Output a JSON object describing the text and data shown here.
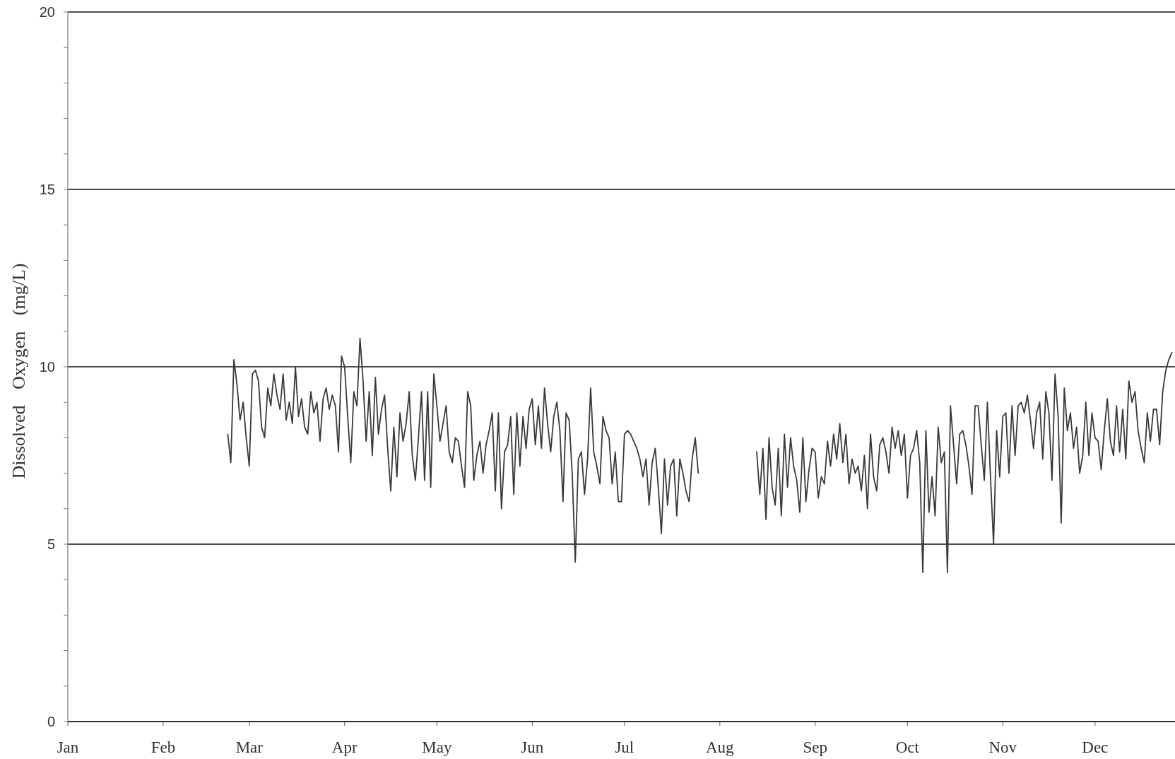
{
  "chart_data": {
    "type": "line",
    "ylabel": "Dissolved Oxygen (mg/L)",
    "x": [
      "--02-22",
      "--02-23",
      "--02-24",
      "--02-25",
      "--02-26",
      "--02-27",
      "--02-28",
      "--03-01",
      "--03-02",
      "--03-03",
      "--03-04",
      "--03-05",
      "--03-06",
      "--03-07",
      "--03-08",
      "--03-09",
      "--03-10",
      "--03-11",
      "--03-12",
      "--03-13",
      "--03-14",
      "--03-15",
      "--03-16",
      "--03-17",
      "--03-18",
      "--03-19",
      "--03-20",
      "--03-21",
      "--03-22",
      "--03-23",
      "--03-24",
      "--03-25",
      "--03-26",
      "--03-27",
      "--03-28",
      "--03-29",
      "--03-30",
      "--03-31",
      "--04-01",
      "--04-02",
      "--04-03",
      "--04-04",
      "--04-05",
      "--04-06",
      "--04-07",
      "--04-08",
      "--04-09",
      "--04-10",
      "--04-11",
      "--04-12",
      "--04-13",
      "--04-14",
      "--04-15",
      "--04-16",
      "--04-17",
      "--04-18",
      "--04-19",
      "--04-20",
      "--04-21",
      "--04-22",
      "--04-23",
      "--04-24",
      "--04-25",
      "--04-26",
      "--04-27",
      "--04-28",
      "--04-29",
      "--04-30",
      "--05-01",
      "--05-02",
      "--05-03",
      "--05-04",
      "--05-05",
      "--05-06",
      "--05-07",
      "--05-08",
      "--05-09",
      "--05-10",
      "--05-11",
      "--05-12",
      "--05-13",
      "--05-14",
      "--05-15",
      "--05-16",
      "--05-17",
      "--05-18",
      "--05-19",
      "--05-20",
      "--05-21",
      "--05-22",
      "--05-23",
      "--05-24",
      "--05-25",
      "--05-26",
      "--05-27",
      "--05-28",
      "--05-29",
      "--05-30",
      "--05-31",
      "--06-01",
      "--06-02",
      "--06-03",
      "--06-04",
      "--06-05",
      "--06-06",
      "--06-07",
      "--06-08",
      "--06-09",
      "--06-10",
      "--06-11",
      "--06-12",
      "--06-13",
      "--06-14",
      "--06-15",
      "--06-16",
      "--06-17",
      "--06-18",
      "--06-19",
      "--06-20",
      "--06-21",
      "--06-22",
      "--06-23",
      "--06-24",
      "--06-25",
      "--06-26",
      "--06-27",
      "--06-28",
      "--06-29",
      "--06-30",
      "--07-01",
      "--07-02",
      "--07-03",
      "--07-04",
      "--07-05",
      "--07-06",
      "--07-07",
      "--07-08",
      "--07-09",
      "--07-10",
      "--07-11",
      "--07-12",
      "--07-13",
      "--07-14",
      "--07-15",
      "--07-16",
      "--07-17",
      "--07-18",
      "--07-19",
      "--07-20",
      "--07-21",
      "--07-22",
      "--07-23",
      "--07-24",
      "--07-25",
      "--08-04",
      "--08-13",
      "--08-14",
      "--08-15",
      "--08-16",
      "--08-17",
      "--08-18",
      "--08-19",
      "--08-20",
      "--08-21",
      "--08-22",
      "--08-23",
      "--08-24",
      "--08-25",
      "--08-26",
      "--08-27",
      "--08-28",
      "--08-29",
      "--08-30",
      "--08-31",
      "--09-01",
      "--09-02",
      "--09-03",
      "--09-04",
      "--09-05",
      "--09-06",
      "--09-07",
      "--09-08",
      "--09-09",
      "--09-10",
      "--09-11",
      "--09-12",
      "--09-13",
      "--09-14",
      "--09-15",
      "--09-16",
      "--09-17",
      "--09-18",
      "--09-19",
      "--09-20",
      "--09-21",
      "--09-22",
      "--09-23",
      "--09-24",
      "--09-25",
      "--09-26",
      "--09-27",
      "--09-28",
      "--09-29",
      "--09-30",
      "--10-01",
      "--10-02",
      "--10-03",
      "--10-04",
      "--10-05",
      "--10-06",
      "--10-07",
      "--10-08",
      "--10-09",
      "--10-10",
      "--10-11",
      "--10-12",
      "--10-13",
      "--10-14",
      "--10-15",
      "--10-16",
      "--10-17",
      "--10-18",
      "--10-19",
      "--10-20",
      "--10-21",
      "--10-22",
      "--10-23",
      "--10-24",
      "--10-25",
      "--10-26",
      "--10-27",
      "--10-28",
      "--10-29",
      "--10-30",
      "--10-31",
      "--11-01",
      "--11-02",
      "--11-03",
      "--11-04",
      "--11-05",
      "--11-06",
      "--11-07",
      "--11-08",
      "--11-09",
      "--11-10",
      "--11-11",
      "--11-12",
      "--11-13",
      "--11-14",
      "--11-15",
      "--11-16",
      "--11-17",
      "--11-18",
      "--11-19",
      "--11-20",
      "--11-21",
      "--11-22",
      "--11-23",
      "--11-24",
      "--11-25",
      "--11-26",
      "--11-27",
      "--11-28",
      "--11-29",
      "--11-30",
      "--12-01",
      "--12-02",
      "--12-03",
      "--12-04",
      "--12-05",
      "--12-06",
      "--12-07",
      "--12-08",
      "--12-09",
      "--12-10",
      "--12-11",
      "--12-12",
      "--12-13",
      "--12-14",
      "--12-15",
      "--12-16",
      "--12-17",
      "--12-18",
      "--12-19",
      "--12-20",
      "--12-21",
      "--12-22",
      "--12-23",
      "--12-24",
      "--12-25",
      "--12-26"
    ],
    "values": [
      8.1,
      7.3,
      10.2,
      9.5,
      8.5,
      9.0,
      8.0,
      7.2,
      9.8,
      9.9,
      9.6,
      8.3,
      8.0,
      9.4,
      8.9,
      9.8,
      9.2,
      8.8,
      9.8,
      8.5,
      9.0,
      8.4,
      10.0,
      8.6,
      9.1,
      8.3,
      8.1,
      9.3,
      8.7,
      9.0,
      7.9,
      9.1,
      9.4,
      8.8,
      9.2,
      8.9,
      7.6,
      10.3,
      10.0,
      8.6,
      7.3,
      9.3,
      8.9,
      10.8,
      9.6,
      7.9,
      9.3,
      7.5,
      9.7,
      8.1,
      8.8,
      9.2,
      7.7,
      6.5,
      8.3,
      6.9,
      8.7,
      7.9,
      8.4,
      9.3,
      7.5,
      6.8,
      8.0,
      9.3,
      6.8,
      9.3,
      6.6,
      9.8,
      8.9,
      7.9,
      8.4,
      8.9,
      7.6,
      7.3,
      8.0,
      7.9,
      7.2,
      6.6,
      9.3,
      8.9,
      6.8,
      7.5,
      7.9,
      7.0,
      7.8,
      8.2,
      8.7,
      6.5,
      8.7,
      6.0,
      7.6,
      7.8,
      8.6,
      6.4,
      8.7,
      7.2,
      8.6,
      7.7,
      8.8,
      9.1,
      7.8,
      8.9,
      7.7,
      9.4,
      8.4,
      7.6,
      8.6,
      9.0,
      8.2,
      6.2,
      8.7,
      8.5,
      7.0,
      4.5,
      7.4,
      7.6,
      6.4,
      7.4,
      9.4,
      7.6,
      7.2,
      6.7,
      8.6,
      8.2,
      8.0,
      6.7,
      7.6,
      6.2,
      6.2,
      8.1,
      8.2,
      8.1,
      7.9,
      7.7,
      7.4,
      6.9,
      7.4,
      6.1,
      7.3,
      7.7,
      6.6,
      5.3,
      7.4,
      6.1,
      7.2,
      7.4,
      5.8,
      7.4,
      7.0,
      6.5,
      6.2,
      7.4,
      8.0,
      7.0,
      null,
      7.6,
      6.4,
      7.7,
      5.7,
      8.0,
      6.6,
      6.1,
      7.7,
      5.8,
      8.1,
      6.6,
      8.0,
      7.2,
      6.8,
      5.9,
      8.0,
      6.2,
      7.1,
      7.7,
      7.6,
      6.3,
      6.9,
      6.7,
      7.9,
      7.2,
      8.1,
      7.4,
      8.4,
      7.3,
      8.1,
      6.7,
      7.4,
      7.0,
      7.2,
      6.5,
      7.5,
      6.0,
      8.1,
      6.9,
      6.5,
      7.8,
      8.0,
      7.6,
      7.0,
      8.3,
      7.7,
      8.2,
      7.5,
      8.1,
      6.3,
      7.5,
      7.7,
      8.2,
      7.3,
      4.2,
      8.2,
      5.9,
      6.9,
      5.8,
      8.3,
      7.3,
      7.6,
      4.2,
      8.9,
      7.8,
      6.7,
      8.1,
      8.2,
      7.8,
      7.2,
      6.4,
      8.9,
      8.9,
      7.8,
      6.8,
      9.0,
      6.9,
      5.0,
      8.2,
      6.9,
      8.6,
      8.7,
      7.0,
      8.9,
      7.5,
      8.9,
      9.0,
      8.7,
      9.2,
      8.5,
      7.7,
      8.7,
      9.0,
      7.4,
      9.3,
      8.7,
      6.8,
      9.8,
      8.6,
      5.6,
      9.4,
      8.2,
      8.7,
      7.7,
      8.3,
      7.0,
      7.5,
      9.0,
      7.5,
      8.7,
      8.0,
      7.9,
      7.1,
      8.2,
      9.1,
      7.9,
      7.5,
      8.9,
      7.6,
      8.8,
      7.4,
      9.6,
      9.0,
      9.3,
      8.2,
      7.7,
      7.3,
      8.7,
      7.9,
      8.8,
      8.8,
      7.8,
      9.3,
      9.9,
      10.2,
      10.4
    ],
    "color": "#3a3a3a",
    "xlim": [
      "--01-01",
      "--12-27"
    ],
    "xticks": [
      {
        "value": "--01-01",
        "label": "Jan"
      },
      {
        "value": "--02-01",
        "label": "Feb"
      },
      {
        "value": "--03-01",
        "label": "Mar"
      },
      {
        "value": "--04-01",
        "label": "Apr"
      },
      {
        "value": "--05-01",
        "label": "May"
      },
      {
        "value": "--06-01",
        "label": "Jun"
      },
      {
        "value": "--07-01",
        "label": "Jul"
      },
      {
        "value": "--08-01",
        "label": "Aug"
      },
      {
        "value": "--09-01",
        "label": "Sep"
      },
      {
        "value": "--10-01",
        "label": "Oct"
      },
      {
        "value": "--11-01",
        "label": "Nov"
      },
      {
        "value": "--12-01",
        "label": "Dec"
      }
    ],
    "ylim": [
      0,
      20
    ],
    "yticks": [
      0,
      {
        "value": 1,
        "label": null
      },
      {
        "value": 2,
        "label": null
      },
      {
        "value": 3,
        "label": null
      },
      {
        "value": 4,
        "label": null
      },
      5,
      {
        "value": 6,
        "label": null
      },
      {
        "value": 7,
        "label": null
      },
      {
        "value": 8,
        "label": null
      },
      {
        "value": 9,
        "label": null
      },
      10,
      {
        "value": 11,
        "label": null
      },
      {
        "value": 12,
        "label": null
      },
      {
        "value": 13,
        "label": null
      },
      {
        "value": 14,
        "label": null
      },
      15,
      {
        "value": 16,
        "label": null
      },
      {
        "value": 17,
        "label": null
      },
      {
        "value": 18,
        "label": null
      },
      {
        "value": 19,
        "label": null
      },
      20
    ],
    "grid": "y"
  }
}
